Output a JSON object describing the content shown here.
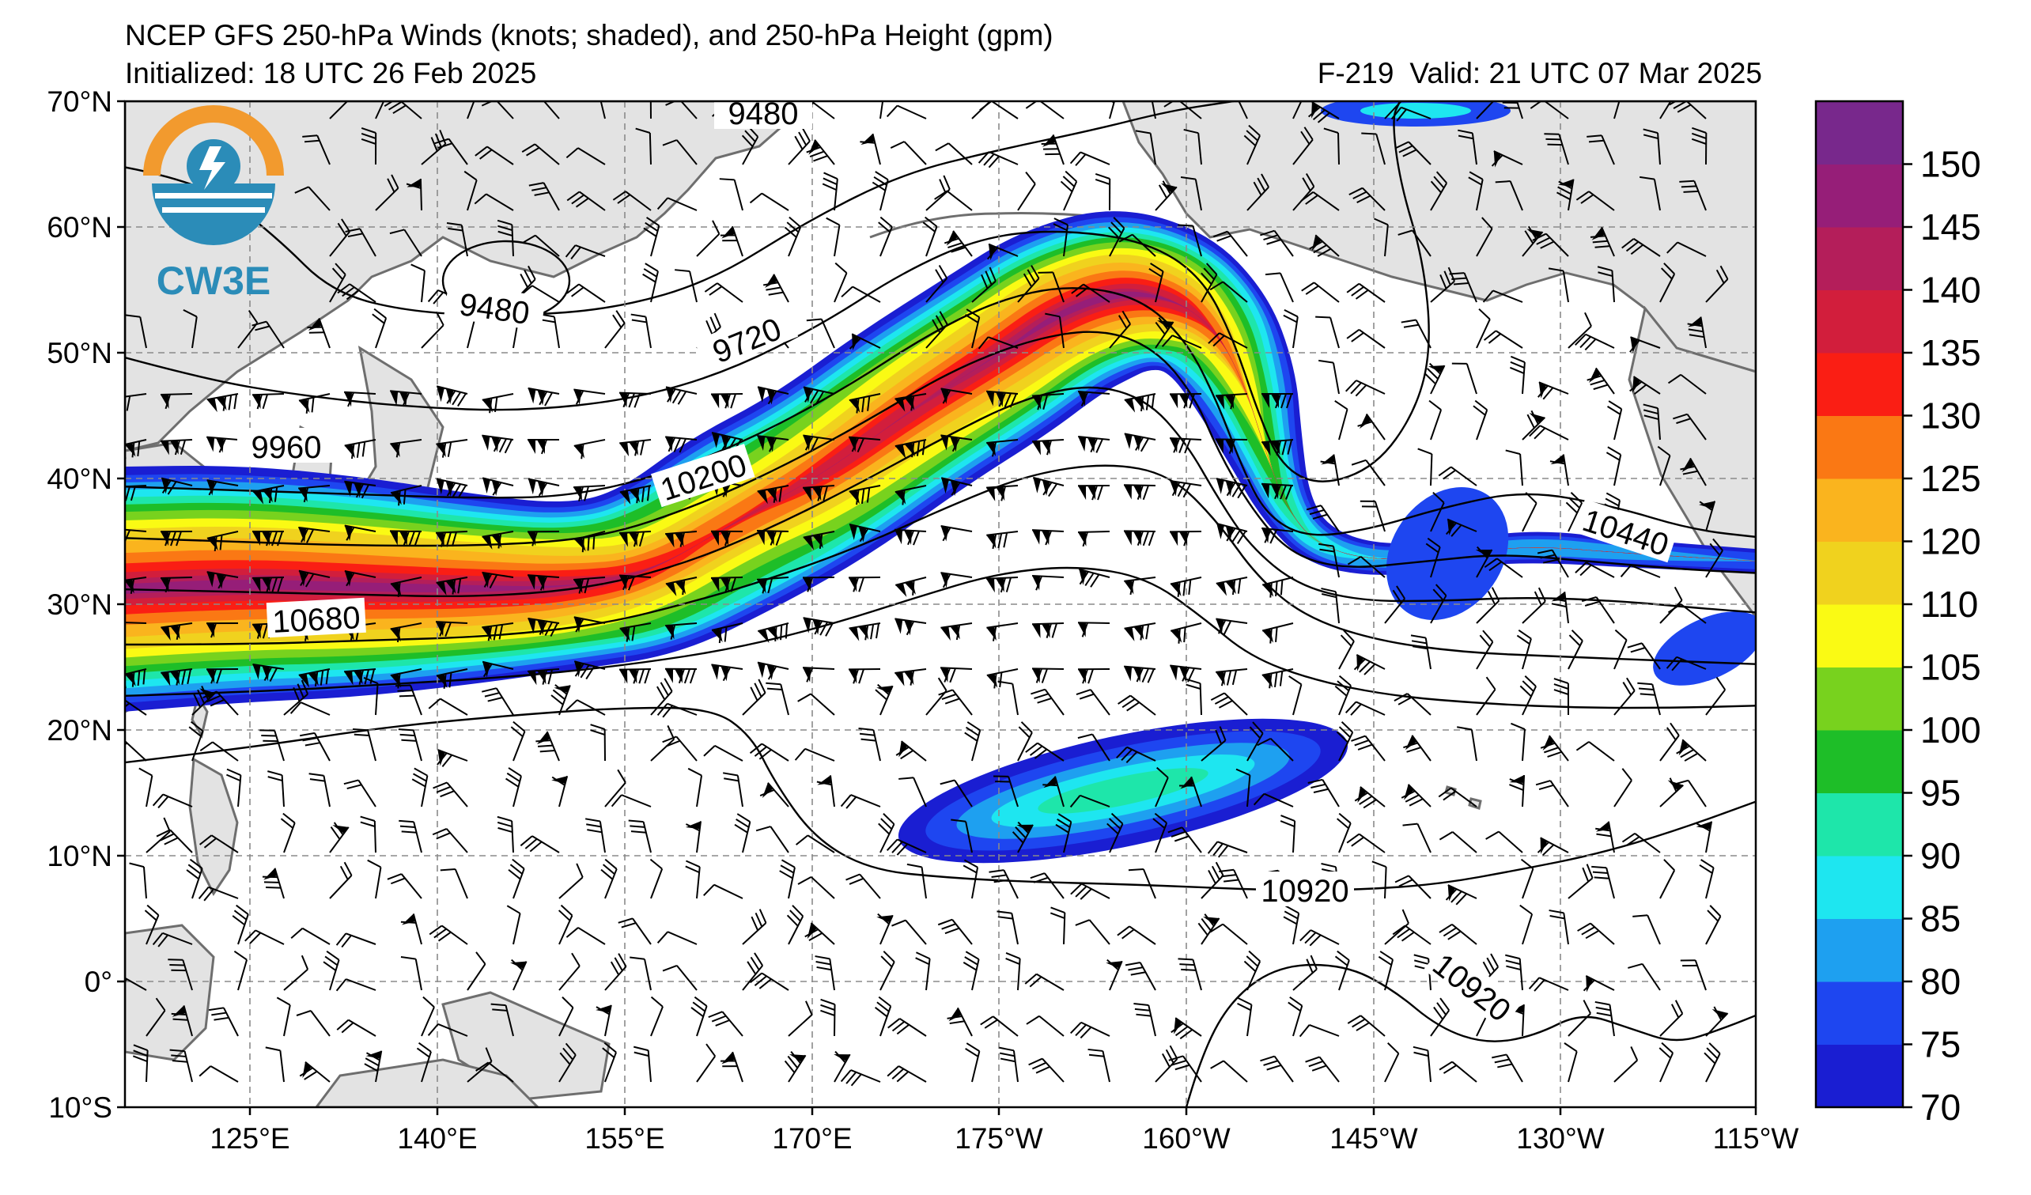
{
  "header": {
    "title": "NCEP GFS 250-hPa Winds (knots; shaded), and 250-hPa Height (gpm)",
    "initialized": "Initialized: 18 UTC 26 Feb 2025",
    "forecast_hour": "F-219",
    "valid": "Valid: 21 UTC 07 Mar 2025"
  },
  "logo": {
    "text": "CW3E",
    "icon": "cw3e-logo-icon"
  },
  "map": {
    "lon_ticks": [
      "125°E",
      "140°E",
      "155°E",
      "170°E",
      "175°W",
      "160°W",
      "145°W",
      "130°W",
      "115°W"
    ],
    "lat_ticks": [
      "70°N",
      "60°N",
      "50°N",
      "40°N",
      "30°N",
      "20°N",
      "10°N",
      "0°",
      "10°S"
    ],
    "height_contour_labels": [
      "9480",
      "9480",
      "9720",
      "9960",
      "10200",
      "10440",
      "10680",
      "10920",
      "10920"
    ]
  },
  "colorbar": {
    "levels": [
      "70",
      "75",
      "80",
      "85",
      "90",
      "95",
      "100",
      "105",
      "110",
      "120",
      "125",
      "130",
      "135",
      "140",
      "145",
      "150"
    ],
    "colors": [
      "#1a1ed2",
      "#1e46f0",
      "#1ea0f0",
      "#1ee6f0",
      "#1ee6aa",
      "#1ebe28",
      "#78d21e",
      "#fafa14",
      "#f0d21e",
      "#fab41e",
      "#fa7814",
      "#fa1e14",
      "#d21e3c",
      "#b41e5a",
      "#961e78",
      "#78288c"
    ]
  },
  "colors": {
    "land": "#e3e3e3",
    "coast": "#6e6e6e",
    "grid": "#8a8a8a"
  }
}
